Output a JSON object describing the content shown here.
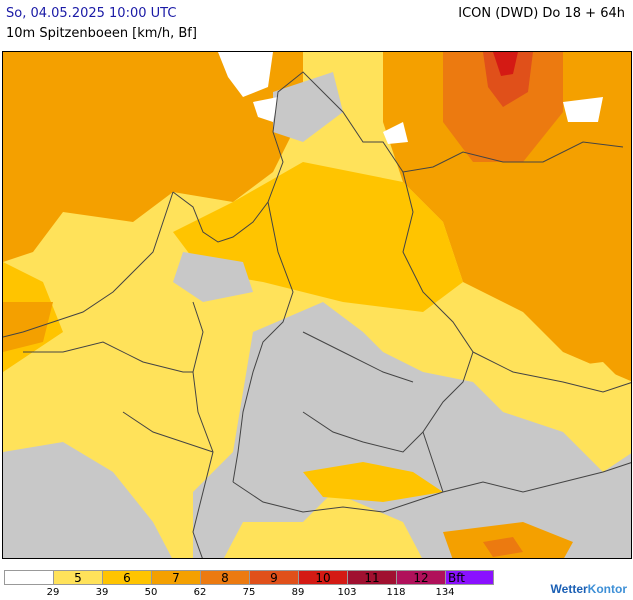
{
  "header": {
    "datetime": "So, 04.05.2025 10:00 UTC",
    "subtitle": "10m Spitzenboeen [km/h, Bf]",
    "model": "ICON (DWD) Do 18 + 64h"
  },
  "colors": {
    "calm": "#c8c8c8",
    "bf5": "#ffe25a",
    "bf6": "#ffc400",
    "bf7": "#f4a000",
    "bf8": "#ec7a10",
    "bf9": "#e0501a",
    "bf10": "#d41a14",
    "bf11": "#a01030",
    "bf12": "#b0105a",
    "bft": "#8a10ff"
  },
  "legend": {
    "cells": [
      {
        "label": "",
        "color": "#ffffff"
      },
      {
        "label": "5",
        "color": "#ffe25a"
      },
      {
        "label": "6",
        "color": "#ffc400"
      },
      {
        "label": "7",
        "color": "#f4a000"
      },
      {
        "label": "8",
        "color": "#ec7a10"
      },
      {
        "label": "9",
        "color": "#e0501a"
      },
      {
        "label": "10",
        "color": "#d41a14"
      },
      {
        "label": "11",
        "color": "#a01030"
      },
      {
        "label": "12",
        "color": "#b0105a"
      },
      {
        "label": "Bft",
        "color": "#8a10ff"
      }
    ],
    "ticks": [
      "29",
      "39",
      "50",
      "62",
      "75",
      "89",
      "103",
      "118",
      "134"
    ]
  },
  "brand": {
    "name_a": "Wetter",
    "name_b": "Kontor"
  }
}
